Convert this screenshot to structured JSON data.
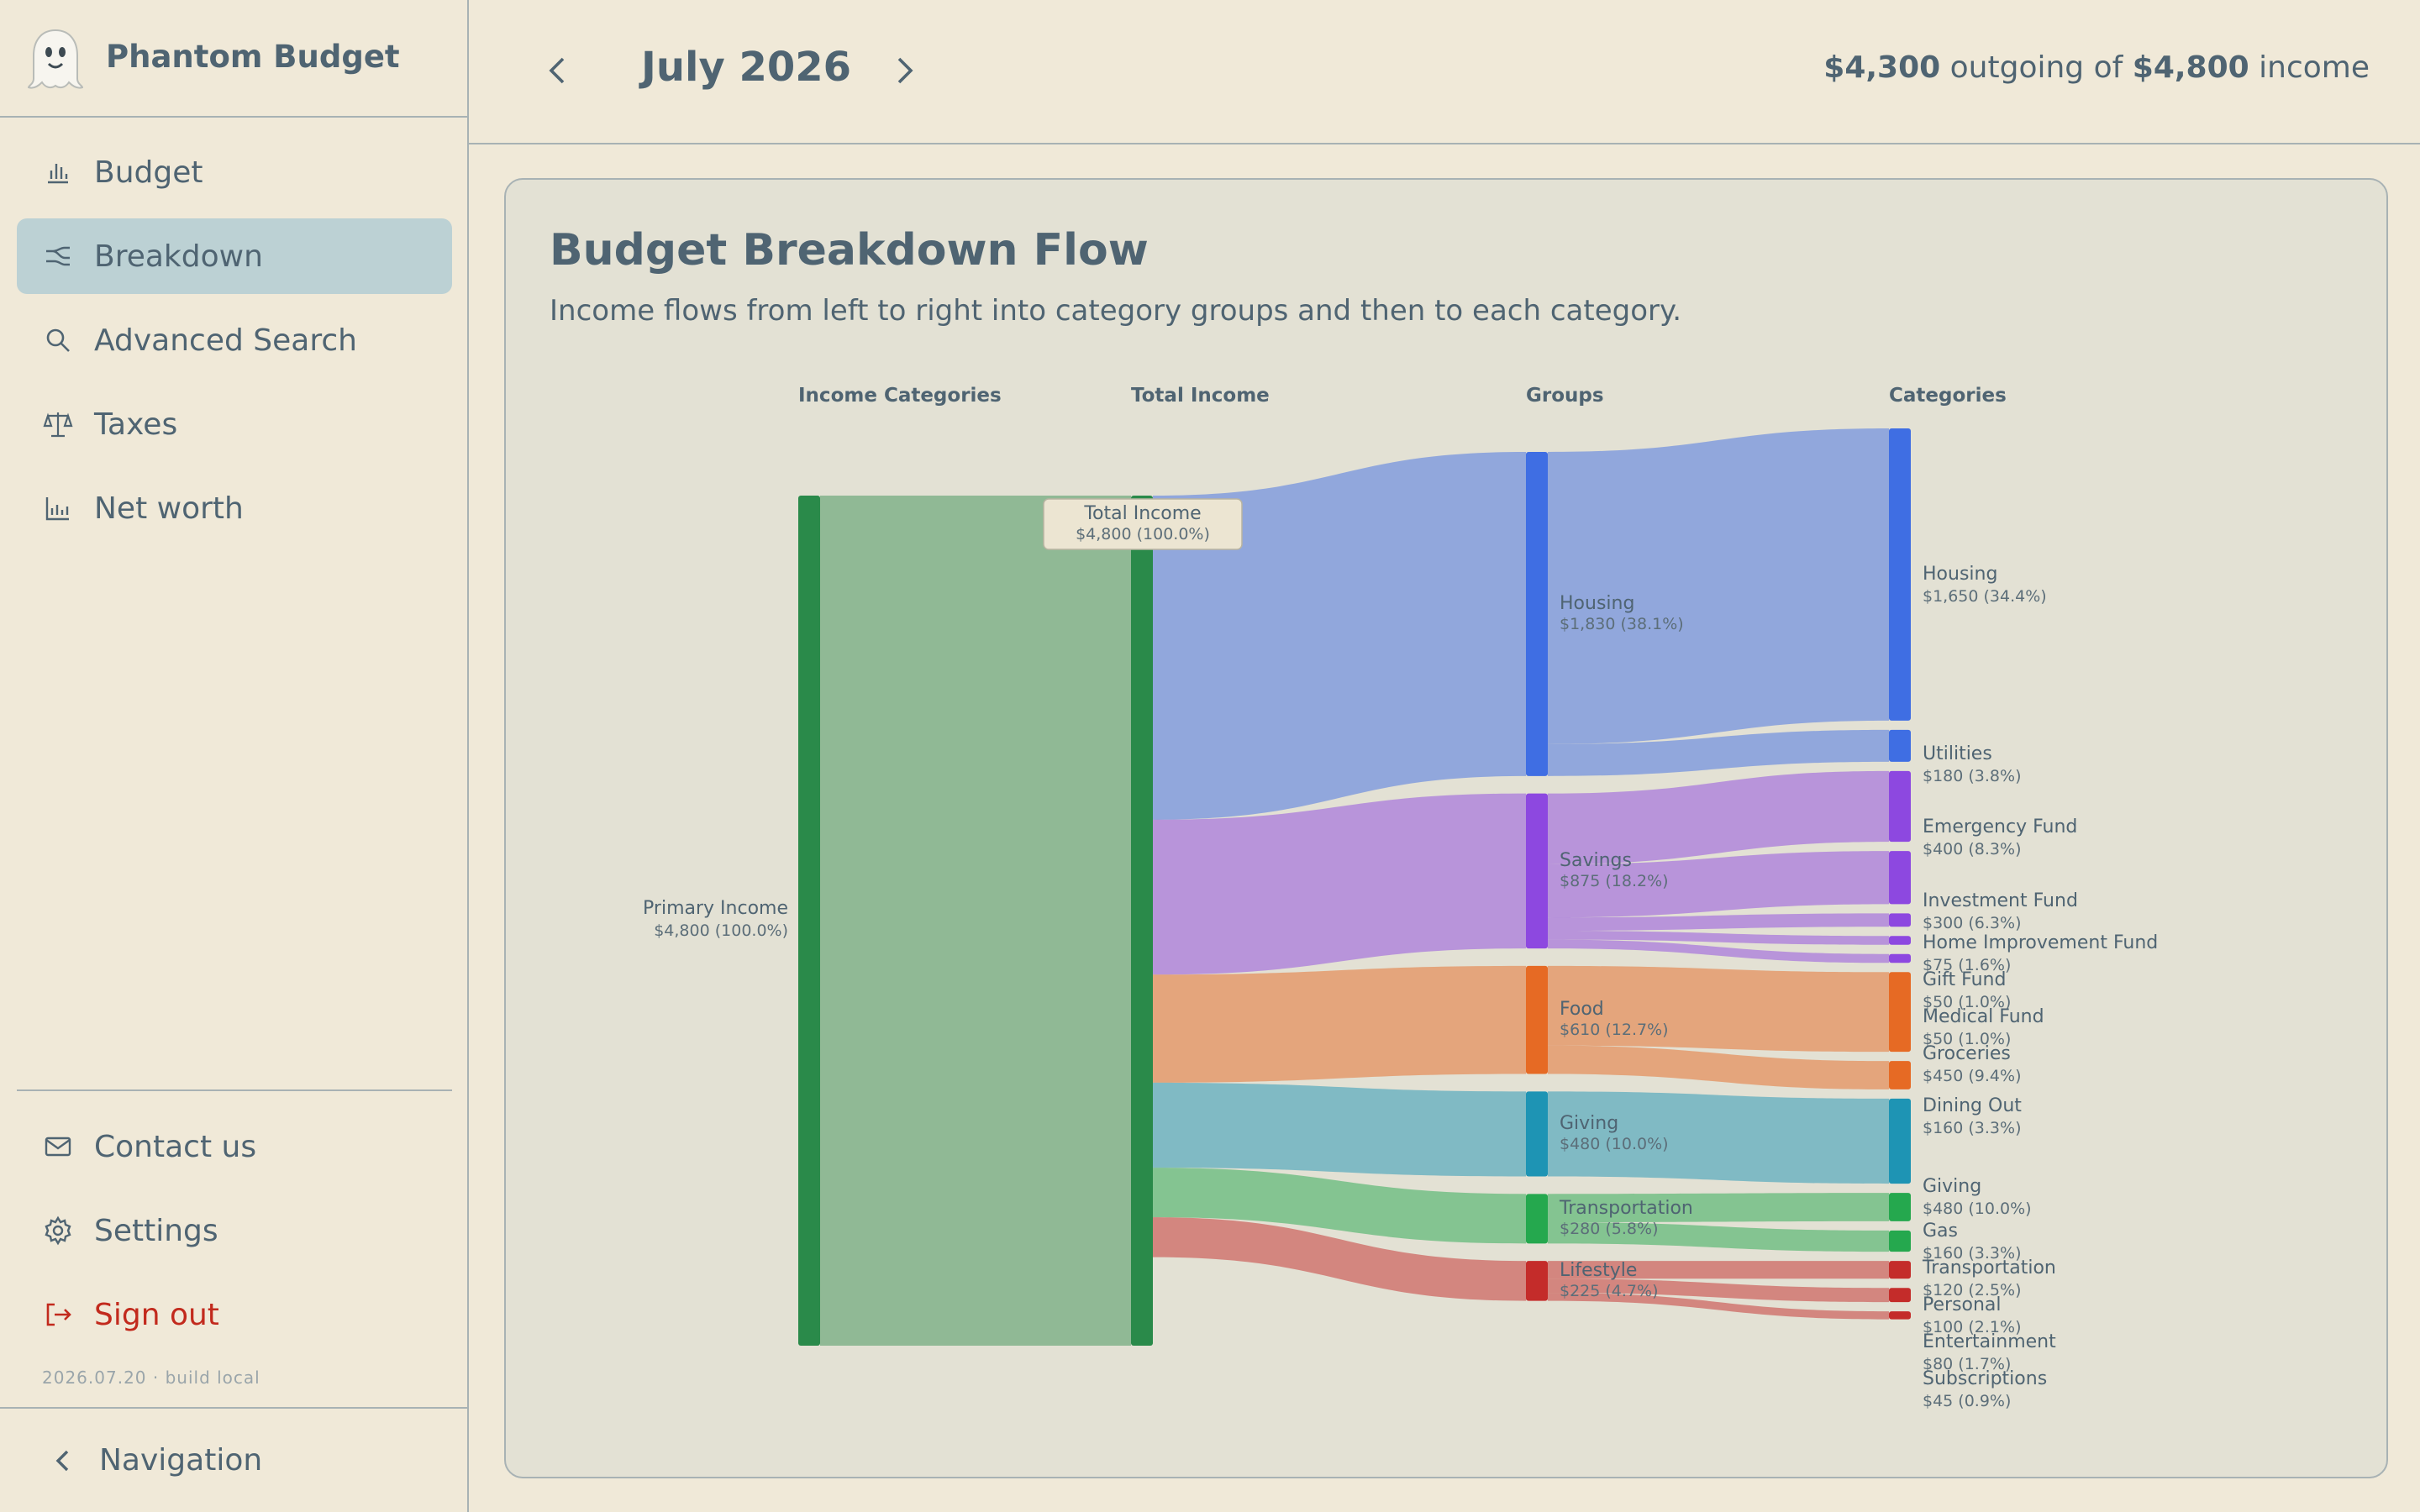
{
  "app": {
    "name": "Phantom Budget"
  },
  "sidebar": {
    "items": [
      {
        "label": "Budget",
        "icon": "bar-chart-icon",
        "active": false
      },
      {
        "label": "Breakdown",
        "icon": "sankey-icon",
        "active": true
      },
      {
        "label": "Advanced Search",
        "icon": "search-icon",
        "active": false
      },
      {
        "label": "Taxes",
        "icon": "scale-icon",
        "active": false
      },
      {
        "label": "Net worth",
        "icon": "line-chart-icon",
        "active": false
      }
    ],
    "bottom_items": [
      {
        "label": "Contact us",
        "icon": "mail-icon"
      },
      {
        "label": "Settings",
        "icon": "gear-icon"
      },
      {
        "label": "Sign out",
        "icon": "sign-out-icon"
      }
    ],
    "build": "2026.07.20 · build local",
    "footer": "Navigation"
  },
  "header": {
    "month": "July 2026",
    "outgoing": "$4,300",
    "outgoing_text": "outgoing of",
    "income": "$4,800",
    "income_text": "income"
  },
  "card": {
    "title": "Budget Breakdown Flow",
    "description": "Income flows from left to right into category groups and then to each category."
  },
  "colors": {
    "income": "#2a8a4a",
    "housing": "#3f6ee3",
    "savings": "#8d48e0",
    "food": "#e66a24",
    "giving": "#1e94b4",
    "transportation": "#25a84e",
    "lifestyle": "#c42c2a"
  },
  "chart_data": {
    "type": "sankey",
    "columns": [
      "Income Categories",
      "Total Income",
      "Groups",
      "Categories"
    ],
    "total_income_label": "Total Income",
    "total_income_value": "$4,800 (100.0%)",
    "income_categories": [
      {
        "name": "Primary Income",
        "value": 4800,
        "label": "$4,800 (100.0%)"
      }
    ],
    "groups": [
      {
        "key": "housing",
        "name": "Housing",
        "value": 1830,
        "label": "$1,830 (38.1%)"
      },
      {
        "key": "savings",
        "name": "Savings",
        "value": 875,
        "label": "$875 (18.2%)"
      },
      {
        "key": "food",
        "name": "Food",
        "value": 610,
        "label": "$610 (12.7%)"
      },
      {
        "key": "giving",
        "name": "Giving",
        "value": 480,
        "label": "$480 (10.0%)"
      },
      {
        "key": "transportation",
        "name": "Transportation",
        "value": 280,
        "label": "$280 (5.8%)"
      },
      {
        "key": "lifestyle",
        "name": "Lifestyle",
        "value": 225,
        "label": "$225 (4.7%)"
      }
    ],
    "categories": [
      {
        "group": "housing",
        "name": "Housing",
        "value": 1650,
        "label": "$1,650 (34.4%)"
      },
      {
        "group": "housing",
        "name": "Utilities",
        "value": 180,
        "label": "$180 (3.8%)"
      },
      {
        "group": "savings",
        "name": "Emergency Fund",
        "value": 400,
        "label": "$400 (8.3%)"
      },
      {
        "group": "savings",
        "name": "Investment Fund",
        "value": 300,
        "label": "$300 (6.3%)"
      },
      {
        "group": "savings",
        "name": "Home Improvement Fund",
        "value": 75,
        "label": "$75 (1.6%)"
      },
      {
        "group": "savings",
        "name": "Gift Fund",
        "value": 50,
        "label": "$50 (1.0%)"
      },
      {
        "group": "savings",
        "name": "Medical Fund",
        "value": 50,
        "label": "$50 (1.0%)"
      },
      {
        "group": "food",
        "name": "Groceries",
        "value": 450,
        "label": "$450 (9.4%)"
      },
      {
        "group": "food",
        "name": "Dining Out",
        "value": 160,
        "label": "$160 (3.3%)"
      },
      {
        "group": "giving",
        "name": "Giving",
        "value": 480,
        "label": "$480 (10.0%)"
      },
      {
        "group": "transportation",
        "name": "Gas",
        "value": 160,
        "label": "$160 (3.3%)"
      },
      {
        "group": "transportation",
        "name": "Transportation",
        "value": 120,
        "label": "$120 (2.5%)"
      },
      {
        "group": "lifestyle",
        "name": "Personal",
        "value": 100,
        "label": "$100 (2.1%)"
      },
      {
        "group": "lifestyle",
        "name": "Entertainment",
        "value": 80,
        "label": "$80 (1.7%)"
      },
      {
        "group": "lifestyle",
        "name": "Subscriptions",
        "value": 45,
        "label": "$45 (0.9%)"
      }
    ]
  }
}
